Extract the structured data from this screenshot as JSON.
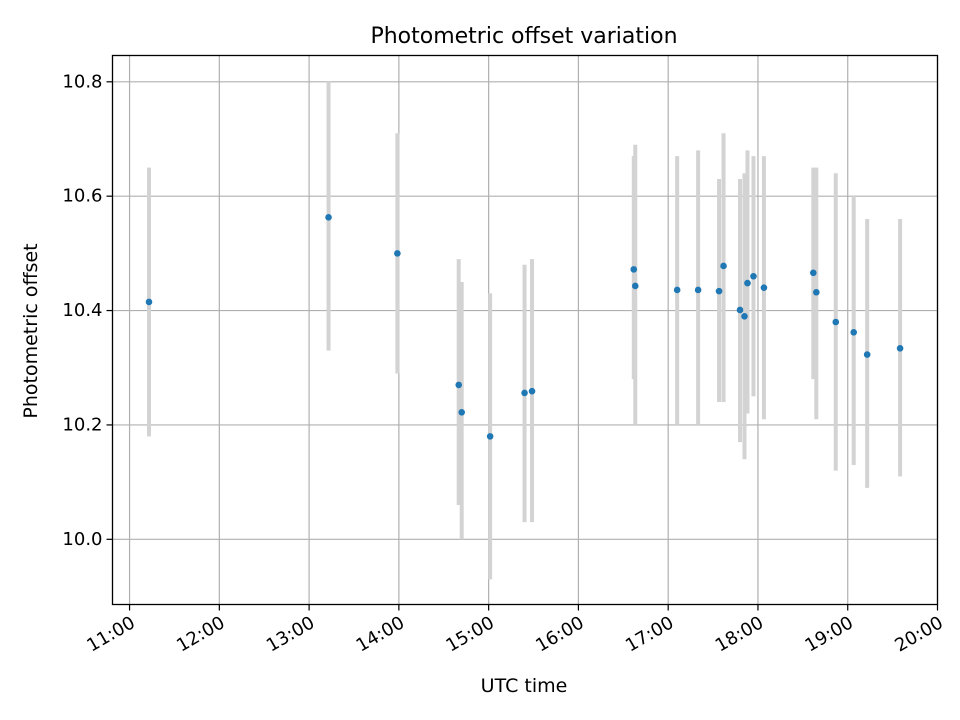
{
  "chart_data": {
    "type": "scatter",
    "title": "Photometric offset variation",
    "xlabel": "UTC time",
    "ylabel": "Photometric offset",
    "x_tick_labels": [
      "11:00",
      "12:00",
      "13:00",
      "14:00",
      "15:00",
      "16:00",
      "17:00",
      "18:00",
      "19:00",
      "20:00"
    ],
    "y_tick_labels": [
      "10.0",
      "10.2",
      "10.4",
      "10.6",
      "10.8"
    ],
    "x_ticks_hours": [
      11,
      12,
      13,
      14,
      15,
      16,
      17,
      18,
      19,
      20
    ],
    "y_ticks": [
      10.0,
      10.2,
      10.4,
      10.6,
      10.8
    ],
    "xlim_hours": [
      10.81,
      20.0
    ],
    "ylim": [
      9.886,
      10.846
    ],
    "grid": true,
    "marker_color": "#1f77b4",
    "errorbar_color": "#d3d3d3",
    "series": [
      {
        "points": [
          {
            "x": "11:13",
            "y": 10.415,
            "lo": 10.18,
            "hi": 10.65
          },
          {
            "x": "13:13",
            "y": 10.563,
            "lo": 10.33,
            "hi": 10.8
          },
          {
            "x": "13:59",
            "y": 10.5,
            "lo": 10.29,
            "hi": 10.71
          },
          {
            "x": "14:40",
            "y": 10.27,
            "lo": 10.06,
            "hi": 10.49
          },
          {
            "x": "14:42",
            "y": 10.222,
            "lo": 10.0,
            "hi": 10.45
          },
          {
            "x": "15:01",
            "y": 10.18,
            "lo": 9.93,
            "hi": 10.43
          },
          {
            "x": "15:24",
            "y": 10.256,
            "lo": 10.03,
            "hi": 10.48
          },
          {
            "x": "15:29",
            "y": 10.259,
            "lo": 10.03,
            "hi": 10.49
          },
          {
            "x": "16:37",
            "y": 10.472,
            "lo": 10.28,
            "hi": 10.67
          },
          {
            "x": "16:38",
            "y": 10.443,
            "lo": 10.2,
            "hi": 10.69
          },
          {
            "x": "17:06",
            "y": 10.436,
            "lo": 10.2,
            "hi": 10.67
          },
          {
            "x": "17:20",
            "y": 10.436,
            "lo": 10.2,
            "hi": 10.68
          },
          {
            "x": "17:34",
            "y": 10.434,
            "lo": 10.24,
            "hi": 10.63
          },
          {
            "x": "17:37",
            "y": 10.478,
            "lo": 10.24,
            "hi": 10.71
          },
          {
            "x": "17:48",
            "y": 10.401,
            "lo": 10.17,
            "hi": 10.63
          },
          {
            "x": "17:51",
            "y": 10.39,
            "lo": 10.14,
            "hi": 10.64
          },
          {
            "x": "17:53",
            "y": 10.448,
            "lo": 10.22,
            "hi": 10.68
          },
          {
            "x": "17:57",
            "y": 10.46,
            "lo": 10.25,
            "hi": 10.67
          },
          {
            "x": "18:04",
            "y": 10.44,
            "lo": 10.21,
            "hi": 10.67
          },
          {
            "x": "18:37",
            "y": 10.466,
            "lo": 10.28,
            "hi": 10.65
          },
          {
            "x": "18:39",
            "y": 10.432,
            "lo": 10.21,
            "hi": 10.65
          },
          {
            "x": "18:52",
            "y": 10.38,
            "lo": 10.12,
            "hi": 10.64
          },
          {
            "x": "19:04",
            "y": 10.362,
            "lo": 10.13,
            "hi": 10.6
          },
          {
            "x": "19:13",
            "y": 10.323,
            "lo": 10.09,
            "hi": 10.56
          },
          {
            "x": "19:35",
            "y": 10.334,
            "lo": 10.11,
            "hi": 10.56
          }
        ]
      }
    ]
  }
}
